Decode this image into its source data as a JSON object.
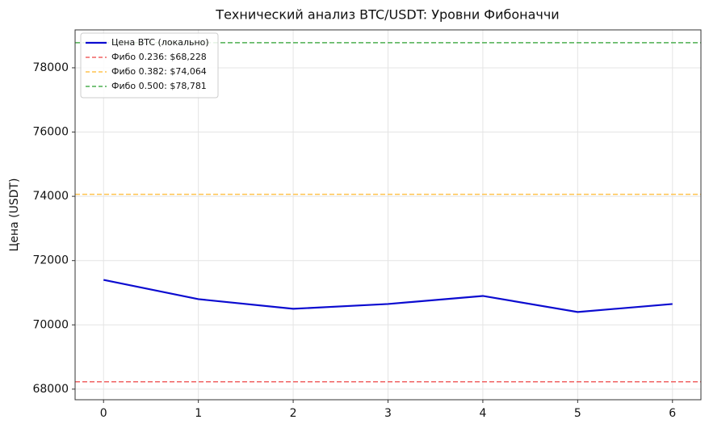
{
  "chart_data": {
    "type": "line",
    "title": "Технический анализ BTC/USDT: Уровни Фибоначчи",
    "y_label": "Цена (USDT)",
    "x": [
      0,
      1,
      2,
      3,
      4,
      5,
      6
    ],
    "series": [
      {
        "name": "Цена BTC (локально)",
        "color": "#0b0bd0",
        "values": [
          71400,
          70800,
          70500,
          70650,
          70900,
          70400,
          70650
        ]
      }
    ],
    "hlines": [
      {
        "name": "Фибо 0.236: $68,228",
        "color": "#f06262",
        "value": 68228
      },
      {
        "name": "Фибо 0.382: $74,064",
        "color": "#ffc34f",
        "value": 74064
      },
      {
        "name": "Фибо 0.500: $78,781",
        "color": "#4caf50",
        "value": 78781
      }
    ],
    "xlim": [
      -0.3,
      6.3
    ],
    "xticks": [
      0,
      1,
      2,
      3,
      4,
      5,
      6
    ],
    "ylim": [
      67670,
      79180
    ],
    "yticks": [
      68000,
      70000,
      72000,
      74000,
      76000,
      78000
    ],
    "grid": true,
    "legend": "upper left"
  }
}
